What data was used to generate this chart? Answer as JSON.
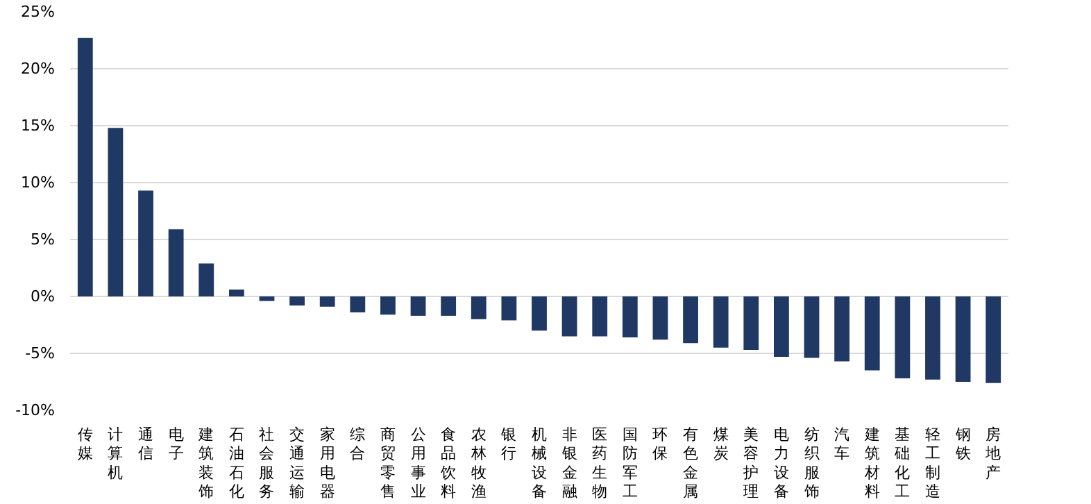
{
  "chart_data": {
    "type": "bar",
    "categories": [
      "传媒",
      "计算机",
      "通信",
      "电子",
      "建筑装饰",
      "石油石化",
      "社会服务",
      "交通运输",
      "家用电器",
      "综合",
      "商贸零售",
      "公用事业",
      "食品饮料",
      "农林牧渔",
      "银行",
      "机械设备",
      "非银金融",
      "医药生物",
      "国防军工",
      "环保",
      "有色金属",
      "煤炭",
      "美容护理",
      "电力设备",
      "纺织服饰",
      "汽车",
      "建筑材料",
      "基础化工",
      "轻工制造",
      "钢铁",
      "房地产"
    ],
    "values": [
      22.7,
      14.8,
      9.3,
      5.9,
      2.9,
      0.6,
      -0.4,
      -0.8,
      -0.9,
      -1.4,
      -1.6,
      -1.7,
      -1.7,
      -2.0,
      -2.1,
      -3.0,
      -3.5,
      -3.5,
      -3.6,
      -3.8,
      -4.1,
      -4.5,
      -4.7,
      -5.3,
      -5.4,
      -5.7,
      -6.5,
      -7.2,
      -7.3,
      -7.5,
      -7.6
    ],
    "color": "#1f3864",
    "ylim": [
      -10,
      25
    ],
    "yticks": [
      {
        "value": -10,
        "label": "-10%"
      },
      {
        "value": -5,
        "label": "-5%"
      },
      {
        "value": 0,
        "label": "0%"
      },
      {
        "value": 5,
        "label": "5%"
      },
      {
        "value": 10,
        "label": "10%"
      },
      {
        "value": 15,
        "label": "15%"
      },
      {
        "value": 20,
        "label": "20%"
      },
      {
        "value": 25,
        "label": "25%"
      }
    ],
    "grid": "y"
  }
}
